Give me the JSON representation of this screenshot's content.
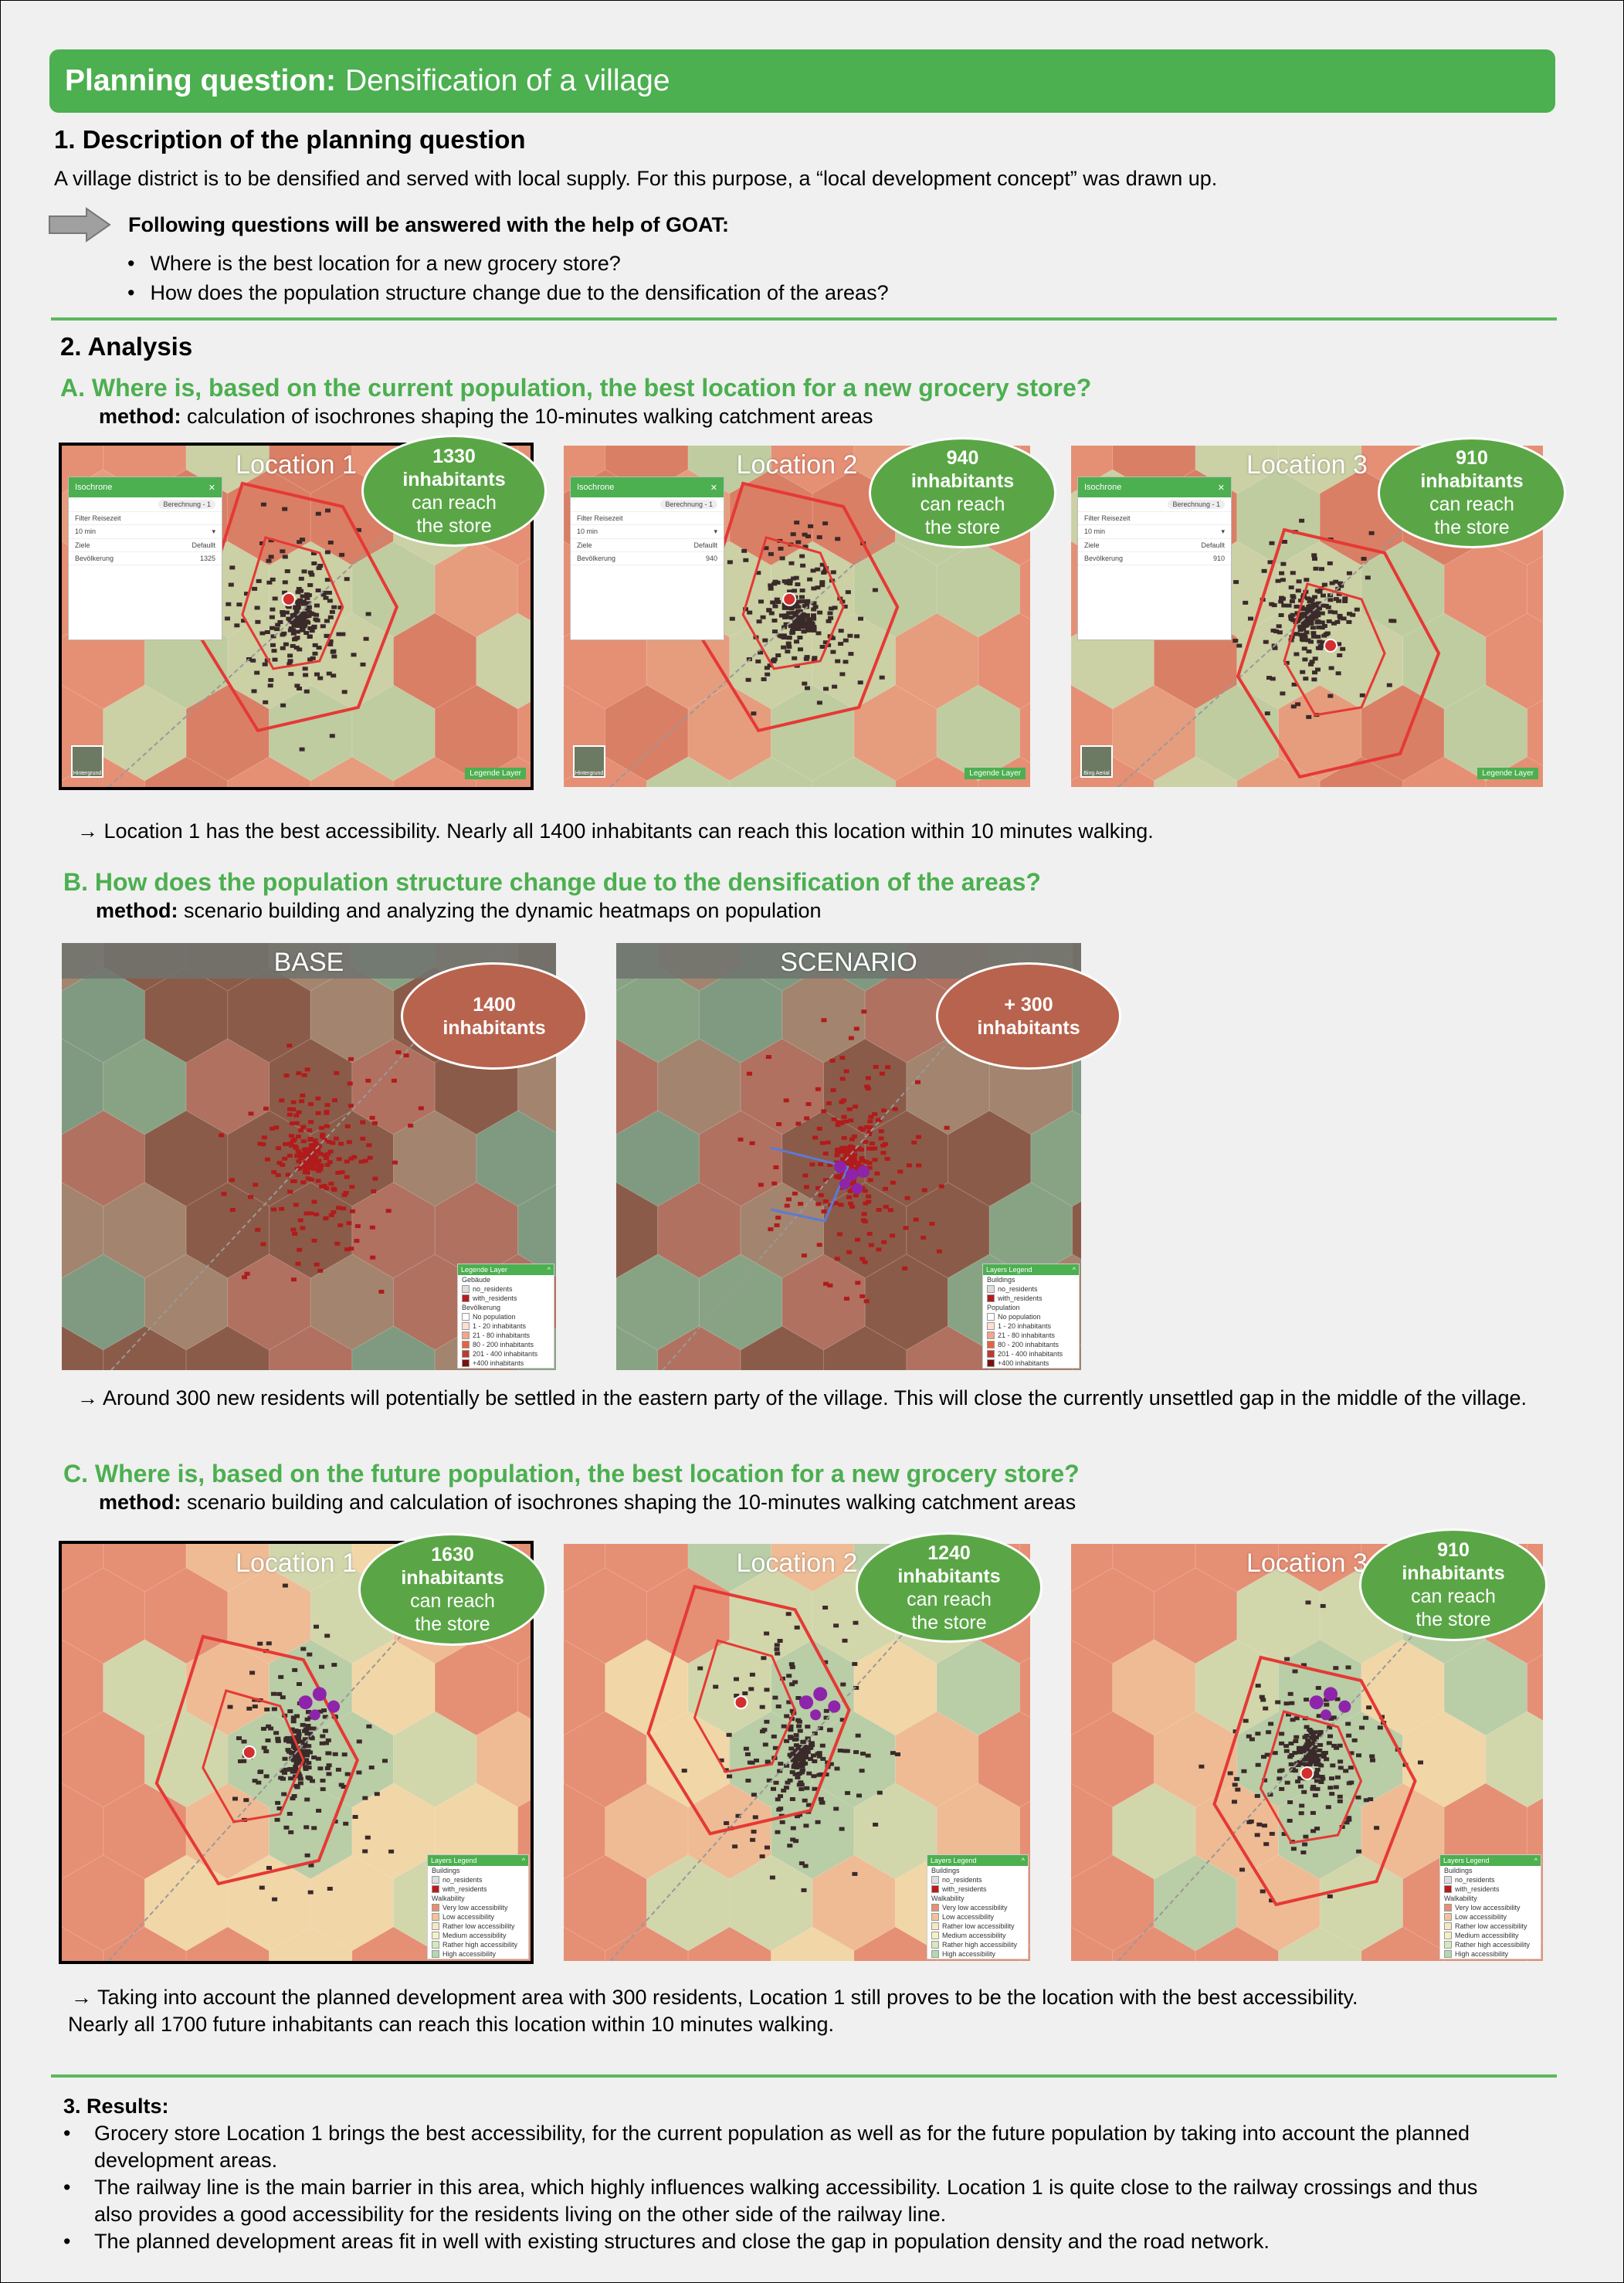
{
  "title": {
    "bold": "Planning question:",
    "rest": "Densification of a village"
  },
  "s1": {
    "heading": "1. Description of the planning question",
    "intro": "A village district is to be densified and served with local supply. For this purpose, a “local development concept” was drawn up.",
    "questions_intro": "Following questions will be answered with the help of GOAT:",
    "questions": [
      "Where is the best location for a new grocery store?",
      "How does the population structure change due to the densification of the areas?"
    ]
  },
  "s2": {
    "heading": "2. Analysis",
    "a": {
      "title": "A. Where is, based on the current population, the best location for a new grocery store?",
      "method_bold": "method:",
      "method": "calculation of isochrones shaping the 10-minutes walking catchment areas",
      "maps": [
        {
          "label": "Location 1",
          "count": "1330",
          "line1": "inhabitants",
          "line2": "can reach",
          "line3": "the store",
          "panel_value": "1325",
          "basemap": "Hintergrund"
        },
        {
          "label": "Location 2",
          "count": "940",
          "line1": "inhabitants",
          "line2": "can reach",
          "line3": "the store",
          "panel_value": "940",
          "basemap": "Hintergrund"
        },
        {
          "label": "Location 3",
          "count": "910",
          "line1": "inhabitants",
          "line2": "can reach",
          "line3": "the store",
          "panel_value": "910",
          "basemap": "Bing Aerial"
        }
      ],
      "panel": {
        "title": "Isochrone",
        "button": "Berechnung - 1",
        "field_label": "Filter Reisezeit",
        "field_value": "10 min",
        "col1": "Ziele",
        "col2": "Defaullt",
        "row_label": "Bevölkerung"
      },
      "legend_button": "Legende Layer",
      "conclusion": "→ Location 1 has the best accessibility. Nearly all 1400 inhabitants can reach this location within 10 minutes walking."
    },
    "b": {
      "title": "B. How does the population structure change due to the densification of the areas?",
      "method_bold": "method:",
      "method": "scenario building and analyzing the dynamic heatmaps on population",
      "maps": [
        {
          "label": "BASE",
          "count": "1400",
          "line1": "inhabitants"
        },
        {
          "label": "SCENARIO",
          "count": "+ 300",
          "line1": "inhabitants"
        }
      ],
      "legend_de": {
        "title": "Legende Layer",
        "group1": "Gebäude",
        "i1": "no_residents",
        "i2": "with_residents",
        "group2": "Bevölkerung",
        "items": [
          "No population",
          "1 - 20 inhabitants",
          "21 - 80 inhabitants",
          "80 - 200 inhabitants",
          "201 - 400 inhabitants",
          "+400 inhabitants"
        ]
      },
      "legend_en": {
        "title": "Layers Legend",
        "group1": "Buildings",
        "i1": "no_residents",
        "i2": "with_residents",
        "group2": "Population",
        "items": [
          "No population",
          "1 - 20 inhabitants",
          "21 - 80 inhabitants",
          "80 - 200 inhabitants",
          "201 - 400 inhabitants",
          "+400 inhabitants"
        ]
      },
      "conclusion": "→ Around 300 new residents will potentially be settled in the eastern party of the village. This will close the currently unsettled gap in the middle of the village."
    },
    "c": {
      "title": "C. Where is, based on the future population, the best location for a new grocery store?",
      "method_bold": "method:",
      "method": "scenario building and calculation of isochrones shaping the 10-minutes walking catchment areas",
      "maps": [
        {
          "label": "Location 1",
          "count": "1630",
          "line1": "inhabitants",
          "line2": "can reach",
          "line3": "the store"
        },
        {
          "label": "Location 2",
          "count": "1240",
          "line1": "inhabitants",
          "line2": "can reach",
          "line3": "the store"
        },
        {
          "label": "Location 3",
          "count": "910",
          "line1": "inhabitants",
          "line2": "can reach",
          "line3": "the store"
        }
      ],
      "legend": {
        "title": "Layers Legend",
        "group1": "Buildings",
        "i1": "no_residents",
        "i2": "with_residents",
        "group2": "Walkability",
        "items": [
          "Very low accessibility",
          "Low accessibility",
          "Rather low accessibility",
          "Medium accessibility",
          "Rather high accessibility",
          "High accessibility"
        ]
      },
      "conclusion1": "→ Taking into account the planned development area with 300 residents, Location 1 still proves to be the location with the best accessibility.",
      "conclusion2": "Nearly all 1700 future inhabitants can reach this location within 10 minutes walking."
    }
  },
  "s3": {
    "heading": "3. Results:",
    "items": [
      "Grocery store Location 1 brings the best accessibility, for the current population as well as for the future population by taking into account the planned development areas.",
      "The railway line is the main barrier in this area, which highly influences walking accessibility. Location 1 is quite close to the railway crossings and thus also provides a good accessibility for the residents living on the other side of the railway line.",
      "The planned development areas fit in well with existing structures and close the gap in population density and the road network."
    ]
  },
  "colors": {
    "accent": "#4caf50",
    "bubble_green": "#5aa646",
    "bubble_red": "#b8634e",
    "iso_red": "#e53935"
  }
}
